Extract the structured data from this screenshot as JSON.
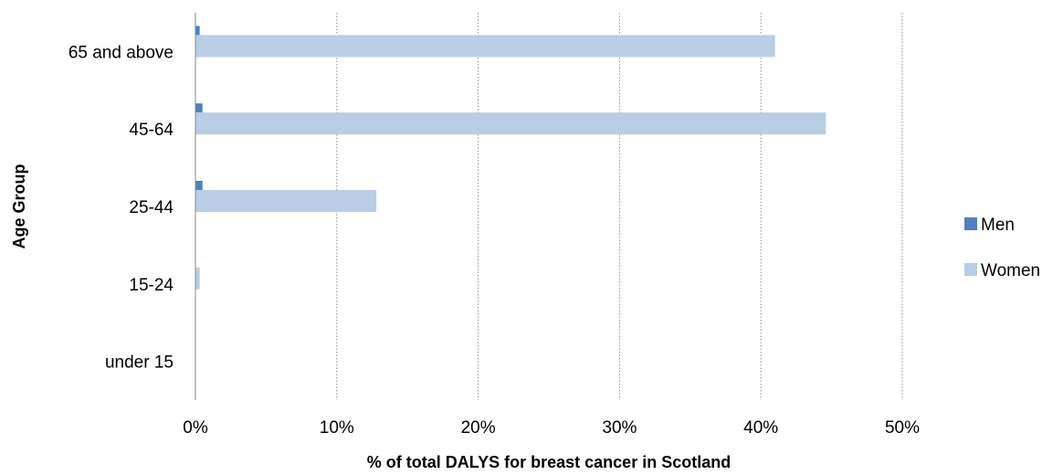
{
  "chart_data": {
    "type": "bar",
    "orientation": "horizontal",
    "categories": [
      "65 and above",
      "45-64",
      "25-44",
      "15-24",
      "under 15"
    ],
    "series": [
      {
        "name": "Men",
        "color": "#4f81bd",
        "values": [
          0.3,
          0.5,
          0.5,
          0.0,
          0.0
        ]
      },
      {
        "name": "Women",
        "color": "#b9cde5",
        "values": [
          41.0,
          44.6,
          12.8,
          0.3,
          0.0
        ]
      }
    ],
    "xlabel": "% of total DALYS for breast cancer in Scotland",
    "ylabel": "Age Group",
    "xlim": [
      0,
      50
    ],
    "xticks": [
      0,
      10,
      20,
      30,
      40,
      50
    ],
    "xtick_labels": [
      "0%",
      "10%",
      "20%",
      "30%",
      "40%",
      "50%"
    ],
    "grid": "vertical dotted",
    "legend_position": "right"
  }
}
